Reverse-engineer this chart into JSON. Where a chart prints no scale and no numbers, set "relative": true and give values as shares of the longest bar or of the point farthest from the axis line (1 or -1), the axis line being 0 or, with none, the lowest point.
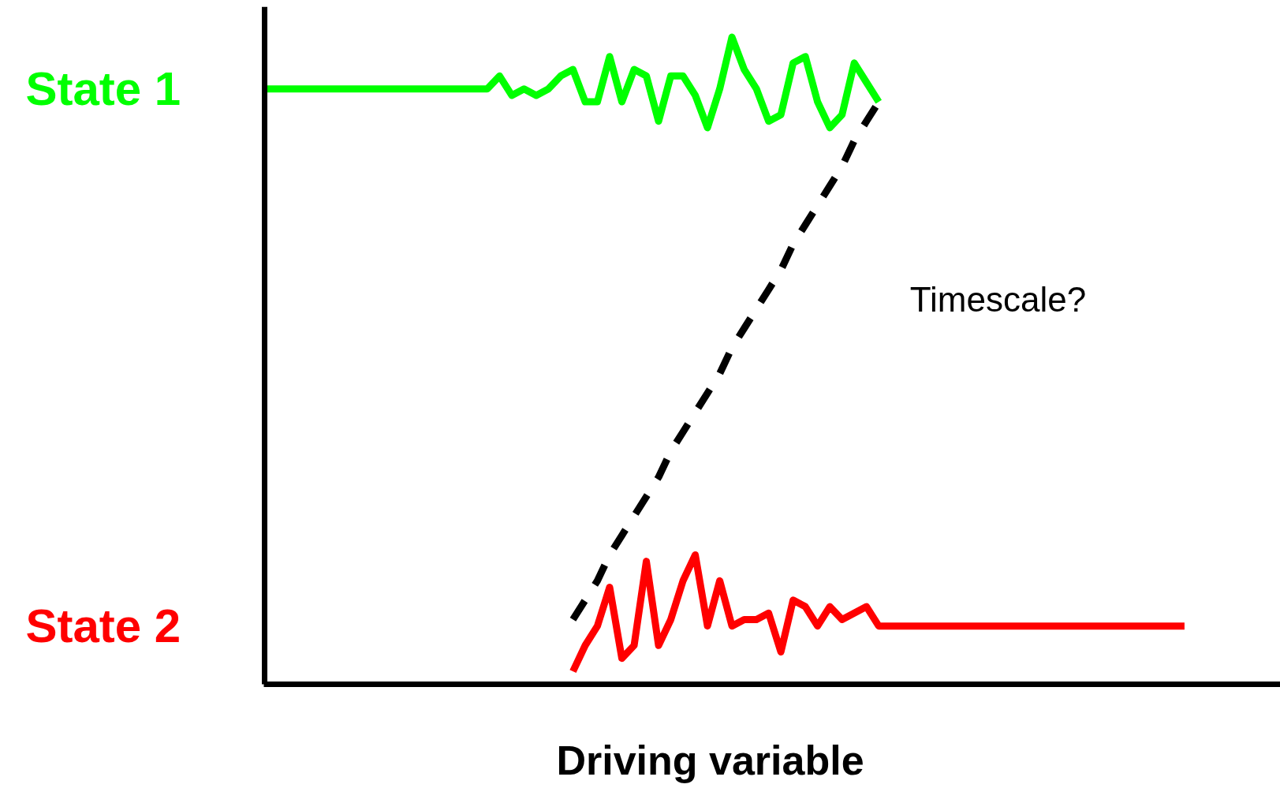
{
  "chart_data": {
    "type": "line",
    "relative": true,
    "xlabel": "Driving variable",
    "marker": "none",
    "categories": [
      null,
      null,
      null,
      null,
      null,
      null,
      null,
      null,
      null,
      null,
      null,
      null,
      null,
      null,
      null,
      null,
      null,
      null,
      null,
      null,
      null,
      null,
      null,
      null,
      null,
      null,
      null,
      null,
      null,
      null,
      null,
      null,
      null,
      null,
      null,
      null,
      null,
      null,
      null,
      null,
      null,
      null,
      null,
      null,
      null,
      null,
      null,
      null,
      null,
      null,
      null,
      null,
      null,
      null,
      null,
      null,
      null,
      null,
      null,
      null,
      null,
      null,
      null,
      null,
      null,
      null,
      null,
      null,
      null,
      null,
      null,
      null,
      null,
      null,
      null,
      null
    ],
    "series": [
      {
        "name": "State 1",
        "color": "#00ff00",
        "line_style": "solid",
        "values": [
          0.92,
          0.92,
          0.92,
          0.92,
          0.92,
          0.92,
          0.92,
          0.92,
          0.92,
          0.92,
          0.92,
          0.92,
          0.92,
          0.92,
          0.92,
          0.92,
          0.92,
          0.92,
          0.92,
          0.94,
          0.91,
          0.92,
          0.91,
          0.92,
          0.94,
          0.95,
          0.9,
          0.9,
          0.97,
          0.9,
          0.95,
          0.94,
          0.87,
          0.94,
          0.94,
          0.91,
          0.86,
          0.92,
          1.0,
          0.95,
          0.92,
          0.87,
          0.88,
          0.96,
          0.97,
          0.9,
          0.86,
          0.88,
          0.96,
          0.93,
          0.9,
          null,
          null,
          null,
          null,
          null,
          null,
          null,
          null,
          null,
          null,
          null,
          null,
          null,
          null,
          null,
          null,
          null,
          null,
          null,
          null,
          null,
          null,
          null,
          null,
          null
        ]
      },
      {
        "name": "State 2",
        "color": "#ff0000",
        "line_style": "solid",
        "values": [
          null,
          null,
          null,
          null,
          null,
          null,
          null,
          null,
          null,
          null,
          null,
          null,
          null,
          null,
          null,
          null,
          null,
          null,
          null,
          null,
          null,
          null,
          null,
          null,
          null,
          0.02,
          0.06,
          0.09,
          0.15,
          0.04,
          0.06,
          0.19,
          0.06,
          0.1,
          0.16,
          0.2,
          0.09,
          0.16,
          0.09,
          0.1,
          0.1,
          0.11,
          0.05,
          0.13,
          0.12,
          0.09,
          0.12,
          0.1,
          0.11,
          0.12,
          0.09,
          0.09,
          0.09,
          0.09,
          0.09,
          0.09,
          0.09,
          0.09,
          0.09,
          0.09,
          0.09,
          0.09,
          0.09,
          0.09,
          0.09,
          0.09,
          0.09,
          0.09,
          0.09,
          0.09,
          0.09,
          0.09,
          0.09,
          0.09,
          0.09,
          0.09
        ]
      },
      {
        "color": "#000000",
        "line_style": "dashed",
        "values": [
          null,
          null,
          null,
          null,
          null,
          null,
          null,
          null,
          null,
          null,
          null,
          null,
          null,
          null,
          null,
          null,
          null,
          null,
          null,
          null,
          null,
          null,
          null,
          null,
          null,
          0.1,
          0.13,
          0.16,
          0.2,
          0.23,
          0.26,
          0.29,
          0.32,
          0.36,
          0.39,
          0.42,
          0.45,
          0.48,
          0.52,
          0.55,
          0.58,
          0.61,
          0.64,
          0.68,
          0.71,
          0.74,
          0.77,
          0.8,
          0.84,
          0.87,
          0.9,
          null,
          null,
          null,
          null,
          null,
          null,
          null,
          null,
          null,
          null,
          null,
          null,
          null,
          null,
          null,
          null,
          null,
          null,
          null,
          null,
          null,
          null,
          null,
          null,
          null
        ]
      }
    ],
    "annotations": [
      "Timescale?"
    ]
  }
}
